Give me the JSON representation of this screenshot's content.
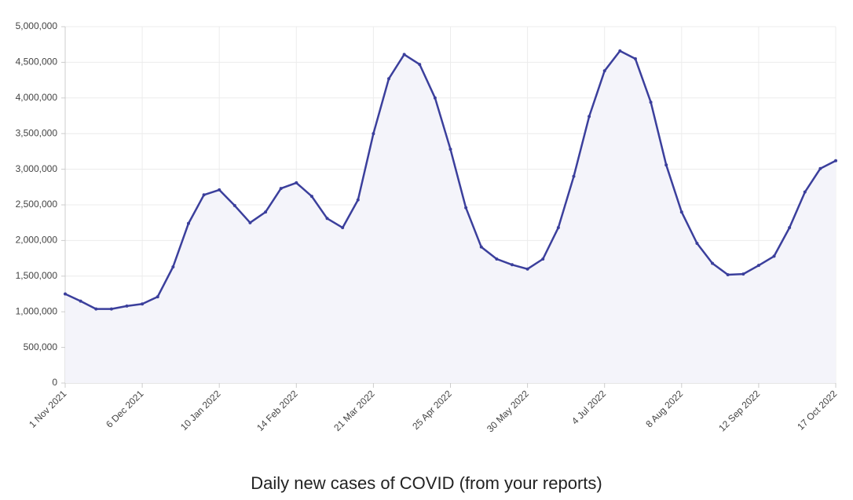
{
  "chart_data": {
    "type": "line",
    "title": "Daily new cases of COVID (from your reports)",
    "x": [
      "2021-11-01",
      "2021-11-08",
      "2021-11-15",
      "2021-11-22",
      "2021-11-29",
      "2021-12-06",
      "2021-12-13",
      "2021-12-20",
      "2021-12-27",
      "2022-01-03",
      "2022-01-10",
      "2022-01-17",
      "2022-01-24",
      "2022-01-31",
      "2022-02-07",
      "2022-02-14",
      "2022-02-21",
      "2022-02-28",
      "2022-03-07",
      "2022-03-14",
      "2022-03-21",
      "2022-03-28",
      "2022-04-04",
      "2022-04-11",
      "2022-04-18",
      "2022-04-25",
      "2022-05-02",
      "2022-05-09",
      "2022-05-16",
      "2022-05-23",
      "2022-05-30",
      "2022-06-06",
      "2022-06-13",
      "2022-06-20",
      "2022-06-27",
      "2022-07-04",
      "2022-07-11",
      "2022-07-18",
      "2022-07-25",
      "2022-08-01",
      "2022-08-08",
      "2022-08-15",
      "2022-08-22",
      "2022-08-29",
      "2022-09-05",
      "2022-09-12",
      "2022-09-19",
      "2022-09-26",
      "2022-10-03",
      "2022-10-10",
      "2022-10-17"
    ],
    "series": [
      {
        "color": "#3b3f9c",
        "values": [
          1250000,
          1150000,
          1040000,
          1040000,
          1080000,
          1110000,
          1210000,
          1630000,
          2240000,
          2640000,
          2710000,
          2490000,
          2250000,
          2400000,
          2730000,
          2810000,
          2620000,
          2310000,
          2180000,
          2570000,
          3500000,
          4270000,
          4610000,
          4470000,
          4000000,
          3280000,
          2460000,
          1910000,
          1740000,
          1660000,
          1600000,
          1740000,
          2180000,
          2900000,
          3740000,
          4380000,
          4660000,
          4550000,
          3940000,
          3060000,
          2400000,
          1960000,
          1680000,
          1520000,
          1530000,
          1650000,
          1780000,
          2180000,
          2680000,
          3010000,
          3120000
        ]
      }
    ],
    "area_color": "#f4f4fa",
    "xlim": [
      "2021-11-01",
      "2022-10-17"
    ],
    "xticks": [
      {
        "value": "2021-11-01",
        "label": "1 Nov 2021"
      },
      {
        "value": "2021-12-06",
        "label": "6 Dec 2021"
      },
      {
        "value": "2022-01-10",
        "label": "10 Jan 2022"
      },
      {
        "value": "2022-02-14",
        "label": "14 Feb 2022"
      },
      {
        "value": "2022-03-21",
        "label": "21 Mar 2022"
      },
      {
        "value": "2022-04-25",
        "label": "25 Apr 2022"
      },
      {
        "value": "2022-05-30",
        "label": "30 May 2022"
      },
      {
        "value": "2022-07-04",
        "label": "4 Jul 2022"
      },
      {
        "value": "2022-08-08",
        "label": "8 Aug 2022"
      },
      {
        "value": "2022-09-12",
        "label": "12 Sep 2022"
      },
      {
        "value": "2022-10-17",
        "label": "17 Oct 2022"
      }
    ],
    "ylim": [
      0,
      5000000
    ],
    "yticks": [
      0,
      {
        "value": 500000,
        "label": "500,000"
      },
      {
        "value": 1000000,
        "label": "1,000,000"
      },
      {
        "value": 1500000,
        "label": "1,500,000"
      },
      {
        "value": 2000000,
        "label": "2,000,000"
      },
      {
        "value": 2500000,
        "label": "2,500,000"
      },
      {
        "value": 3000000,
        "label": "3,000,000"
      },
      {
        "value": 3500000,
        "label": "3,500,000"
      },
      {
        "value": 4000000,
        "label": "4,000,000"
      },
      {
        "value": 4500000,
        "label": "4,500,000"
      },
      {
        "value": 5000000,
        "label": "5,000,000"
      }
    ],
    "grid": true
  }
}
